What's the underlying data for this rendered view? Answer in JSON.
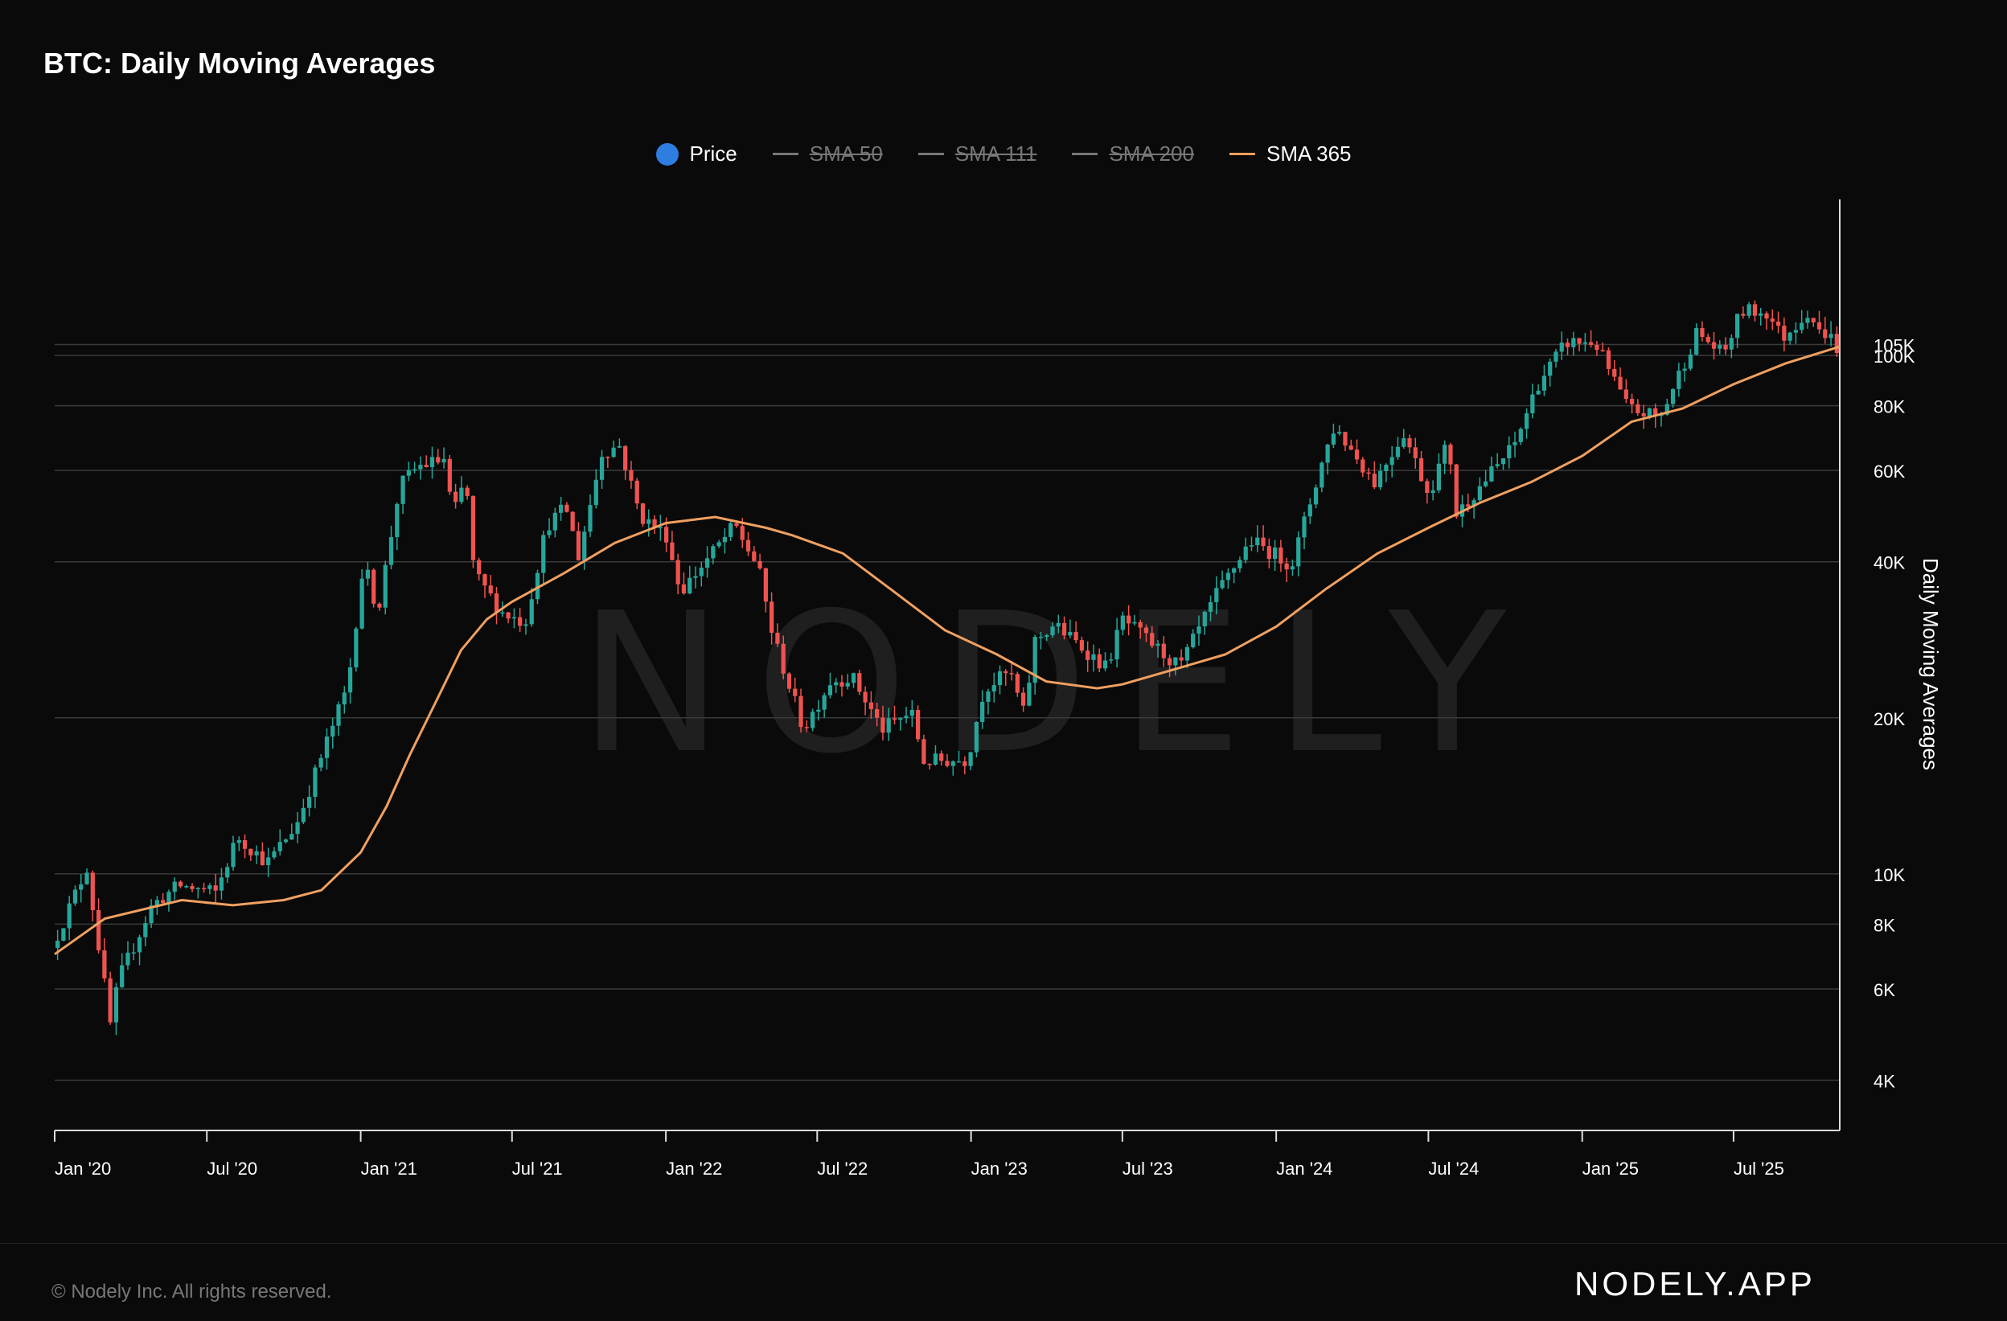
{
  "header": {
    "title": "BTC: Daily Moving Averages"
  },
  "watermark": "NODELY",
  "legend": [
    {
      "label": "Price",
      "kind": "dot",
      "color": "#2e7de1",
      "enabled": true
    },
    {
      "label": "SMA 50",
      "kind": "line",
      "color": "#777777",
      "enabled": false
    },
    {
      "label": "SMA 111",
      "kind": "line",
      "color": "#777777",
      "enabled": false
    },
    {
      "label": "SMA 200",
      "kind": "line",
      "color": "#777777",
      "enabled": false
    },
    {
      "label": "SMA 365",
      "kind": "line",
      "color": "#f0a060",
      "enabled": true
    }
  ],
  "footer": {
    "copyright": "© Nodely Inc. All rights reserved.",
    "brand": "NODELY.APP"
  },
  "chart_data": {
    "type": "line",
    "title": "BTC: Daily Moving Averages",
    "ylabel": "Daily Moving Averages",
    "yscale": "log",
    "ylim": [
      3200,
      200000
    ],
    "xlim": [
      "2020-01-01",
      "2025-11-05"
    ],
    "y_ticks": [
      {
        "label": "4K",
        "value": 4000
      },
      {
        "label": "6K",
        "value": 6000
      },
      {
        "label": "8K",
        "value": 8000
      },
      {
        "label": "10K",
        "value": 10000
      },
      {
        "label": "20K",
        "value": 20000
      },
      {
        "label": "40K",
        "value": 40000
      },
      {
        "label": "60K",
        "value": 60000
      },
      {
        "label": "80K",
        "value": 80000
      },
      {
        "label": "100K",
        "value": 100000
      },
      {
        "label": "105K",
        "value": 105000
      }
    ],
    "x_ticks": [
      {
        "label": "Jan '20",
        "date": "2020-01-01"
      },
      {
        "label": "Jul '20",
        "date": "2020-07-01"
      },
      {
        "label": "Jan '21",
        "date": "2021-01-01"
      },
      {
        "label": "Jul '21",
        "date": "2021-07-01"
      },
      {
        "label": "Jan '22",
        "date": "2022-01-01"
      },
      {
        "label": "Jul '22",
        "date": "2022-07-01"
      },
      {
        "label": "Jan '23",
        "date": "2023-01-01"
      },
      {
        "label": "Jul '23",
        "date": "2023-07-01"
      },
      {
        "label": "Jan '24",
        "date": "2024-01-01"
      },
      {
        "label": "Jul '24",
        "date": "2024-07-01"
      },
      {
        "label": "Jan '25",
        "date": "2025-01-01"
      },
      {
        "label": "Jul '25",
        "date": "2025-07-01"
      }
    ],
    "colors": {
      "up": "#26a69a",
      "down": "#ef5350",
      "sma365": "#f0a060",
      "grid": "#3a3a3a",
      "axis": "#dddddd"
    },
    "price": {
      "name": "Price",
      "points": [
        [
          "2020-01-01",
          7200
        ],
        [
          "2020-02-12",
          10300
        ],
        [
          "2020-03-12",
          5000
        ],
        [
          "2020-03-20",
          6200
        ],
        [
          "2020-04-30",
          8700
        ],
        [
          "2020-06-01",
          9500
        ],
        [
          "2020-07-15",
          9200
        ],
        [
          "2020-08-10",
          11800
        ],
        [
          "2020-09-15",
          10500
        ],
        [
          "2020-10-20",
          12500
        ],
        [
          "2020-11-25",
          18000
        ],
        [
          "2020-12-20",
          23000
        ],
        [
          "2021-01-08",
          40000
        ],
        [
          "2021-01-25",
          32000
        ],
        [
          "2021-02-20",
          56000
        ],
        [
          "2021-03-13",
          61000
        ],
        [
          "2021-04-14",
          63000
        ],
        [
          "2021-04-25",
          49000
        ],
        [
          "2021-05-10",
          58000
        ],
        [
          "2021-05-20",
          38000
        ],
        [
          "2021-06-22",
          32000
        ],
        [
          "2021-07-20",
          30500
        ],
        [
          "2021-08-15",
          47000
        ],
        [
          "2021-09-07",
          51000
        ],
        [
          "2021-09-22",
          41000
        ],
        [
          "2021-10-20",
          65000
        ],
        [
          "2021-11-10",
          67000
        ],
        [
          "2021-12-05",
          49000
        ],
        [
          "2022-01-05",
          45000
        ],
        [
          "2022-01-22",
          35000
        ],
        [
          "2022-03-28",
          47000
        ],
        [
          "2022-04-25",
          39000
        ],
        [
          "2022-05-12",
          29000
        ],
        [
          "2022-06-18",
          19000
        ],
        [
          "2022-07-20",
          23500
        ],
        [
          "2022-08-15",
          24000
        ],
        [
          "2022-09-20",
          19000
        ],
        [
          "2022-10-25",
          20500
        ],
        [
          "2022-11-09",
          16500
        ],
        [
          "2022-12-31",
          16600
        ],
        [
          "2023-01-20",
          22800
        ],
        [
          "2023-02-20",
          24500
        ],
        [
          "2023-03-10",
          20000
        ],
        [
          "2023-03-20",
          28000
        ],
        [
          "2023-04-14",
          30300
        ],
        [
          "2023-06-15",
          25000
        ],
        [
          "2023-07-05",
          31000
        ],
        [
          "2023-09-11",
          25000
        ],
        [
          "2023-10-25",
          34500
        ],
        [
          "2023-12-05",
          44000
        ],
        [
          "2024-01-23",
          39500
        ],
        [
          "2024-02-28",
          62000
        ],
        [
          "2024-03-14",
          73000
        ],
        [
          "2024-05-01",
          57000
        ],
        [
          "2024-06-05",
          71000
        ],
        [
          "2024-07-05",
          54000
        ],
        [
          "2024-07-29",
          69000
        ],
        [
          "2024-08-05",
          49000
        ],
        [
          "2024-10-15",
          67000
        ],
        [
          "2024-11-12",
          88000
        ],
        [
          "2024-12-17",
          106000
        ],
        [
          "2025-01-20",
          106000
        ],
        [
          "2025-02-28",
          79000
        ],
        [
          "2025-04-08",
          76000
        ],
        [
          "2025-05-22",
          111000
        ],
        [
          "2025-06-22",
          100000
        ],
        [
          "2025-07-14",
          122000
        ],
        [
          "2025-08-14",
          121000
        ],
        [
          "2025-09-01",
          108000
        ],
        [
          "2025-10-06",
          124000
        ],
        [
          "2025-10-10",
          110000
        ],
        [
          "2025-10-25",
          111000
        ],
        [
          "2025-11-05",
          103000
        ]
      ]
    },
    "series": [
      {
        "name": "SMA 365",
        "points": [
          [
            "2020-01-01",
            7000
          ],
          [
            "2020-03-01",
            8200
          ],
          [
            "2020-06-01",
            8900
          ],
          [
            "2020-08-01",
            8700
          ],
          [
            "2020-10-01",
            8900
          ],
          [
            "2020-11-15",
            9300
          ],
          [
            "2021-01-01",
            11000
          ],
          [
            "2021-02-01",
            13500
          ],
          [
            "2021-03-01",
            17000
          ],
          [
            "2021-04-01",
            21500
          ],
          [
            "2021-05-01",
            27000
          ],
          [
            "2021-06-01",
            31000
          ],
          [
            "2021-07-01",
            33500
          ],
          [
            "2021-09-01",
            38000
          ],
          [
            "2021-11-01",
            43500
          ],
          [
            "2022-01-01",
            47500
          ],
          [
            "2022-03-01",
            48800
          ],
          [
            "2022-05-01",
            46500
          ],
          [
            "2022-06-01",
            45000
          ],
          [
            "2022-08-01",
            41500
          ],
          [
            "2022-10-01",
            35000
          ],
          [
            "2022-12-01",
            29500
          ],
          [
            "2023-02-01",
            26500
          ],
          [
            "2023-04-01",
            23500
          ],
          [
            "2023-06-01",
            22800
          ],
          [
            "2023-07-01",
            23200
          ],
          [
            "2023-09-01",
            24800
          ],
          [
            "2023-11-01",
            26500
          ],
          [
            "2024-01-01",
            30000
          ],
          [
            "2024-03-01",
            35500
          ],
          [
            "2024-05-01",
            41500
          ],
          [
            "2024-07-01",
            46500
          ],
          [
            "2024-09-01",
            52000
          ],
          [
            "2024-11-01",
            57000
          ],
          [
            "2025-01-01",
            64000
          ],
          [
            "2025-03-01",
            74500
          ],
          [
            "2025-05-01",
            79000
          ],
          [
            "2025-07-01",
            88000
          ],
          [
            "2025-09-01",
            96500
          ],
          [
            "2025-11-05",
            104000
          ]
        ]
      }
    ]
  }
}
